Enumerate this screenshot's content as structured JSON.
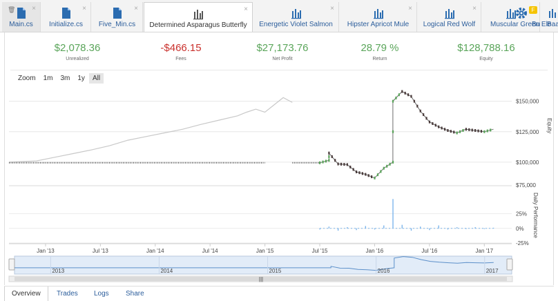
{
  "tabs": [
    {
      "label": "Main.cs",
      "icon": "file-icon",
      "active": false,
      "home": true,
      "pin": "🗑"
    },
    {
      "label": "Initialize.cs",
      "icon": "file-icon",
      "active": false
    },
    {
      "label": "Five_Min.cs",
      "icon": "file-icon",
      "active": false
    },
    {
      "label": "Determined Asparagus Butterfly",
      "icon": "chart-icon",
      "active": true
    },
    {
      "label": "Energetic Violet Salmon",
      "icon": "chart-icon",
      "active": false
    },
    {
      "label": "Hipster Apricot Mule",
      "icon": "chart-icon",
      "active": false
    },
    {
      "label": "Logical Red Wolf",
      "icon": "chart-icon",
      "active": false
    },
    {
      "label": "Muscular Green Ele",
      "icon": "chart-icon",
      "active": false
    },
    {
      "label": "Bu",
      "icon": "chart-icon",
      "active": false
    },
    {
      "label": "Baa",
      "icon": "chart-icon",
      "active": false
    }
  ],
  "tab_close_glyph": "×",
  "badge_text": "F",
  "stats": [
    {
      "value": "$2,078.36",
      "label": "Unrealized",
      "tone": "pos"
    },
    {
      "value": "-$466.15",
      "label": "Fees",
      "tone": "neg"
    },
    {
      "value": "$27,173.76",
      "label": "Net Profit",
      "tone": "pos"
    },
    {
      "value": "28.79 %",
      "label": "Return",
      "tone": "pos"
    },
    {
      "value": "$128,788.16",
      "label": "Equity",
      "tone": "pos"
    }
  ],
  "zoom": {
    "label": "Zoom",
    "options": [
      "1m",
      "3m",
      "1y",
      "All"
    ],
    "selected": "All"
  },
  "colors": {
    "positive": "#5aa55a",
    "negative": "#c9302c",
    "link": "#2b5d9b",
    "bar": "#7cb5ec",
    "benchmark": "#c8c8c8"
  },
  "chart_data": {
    "type": "line",
    "x_ticks": [
      "Jan '13",
      "Jul '13",
      "Jan '14",
      "Jul '14",
      "Jan '15",
      "Jul '15",
      "Jan '16",
      "Jul '16",
      "Jan '17"
    ],
    "x_range": [
      "2012-09",
      "2017-04"
    ],
    "equity": {
      "axis_label": "Equity",
      "ylim": [
        75000,
        160000
      ],
      "y_ticks": [
        "$150,000",
        "$125,000",
        "$100,000",
        "$75,000"
      ],
      "benchmark": [
        {
          "x": "2012-09",
          "y": 100000
        },
        {
          "x": "2012-12",
          "y": 101000
        },
        {
          "x": "2013-02",
          "y": 104000
        },
        {
          "x": "2013-04",
          "y": 107000
        },
        {
          "x": "2013-06",
          "y": 110000
        },
        {
          "x": "2013-08",
          "y": 113500
        },
        {
          "x": "2013-10",
          "y": 118000
        },
        {
          "x": "2013-12",
          "y": 121000
        },
        {
          "x": "2014-02",
          "y": 124000
        },
        {
          "x": "2014-04",
          "y": 127000
        },
        {
          "x": "2014-06",
          "y": 131000
        },
        {
          "x": "2014-08",
          "y": 134500
        },
        {
          "x": "2014-10",
          "y": 138000
        },
        {
          "x": "2014-11",
          "y": 141000
        },
        {
          "x": "2014-12",
          "y": 143500
        },
        {
          "x": "2015-01",
          "y": 141000
        },
        {
          "x": "2015-02",
          "y": 147000
        },
        {
          "x": "2015-03",
          "y": 153000
        },
        {
          "x": "2015-04",
          "y": 149000
        }
      ],
      "flat_dotted": {
        "from": "2012-09",
        "to": "2015-01",
        "y": 99500
      },
      "flat_dotted_2": {
        "from": "2015-04",
        "to": "2015-07",
        "y": 99500
      },
      "strategy": [
        {
          "x": "2015-07",
          "y": 99500
        },
        {
          "x": "2015-08",
          "y": 101500
        },
        {
          "x": "2015-08",
          "y": 107500
        },
        {
          "x": "2015-09",
          "y": 98500
        },
        {
          "x": "2015-10",
          "y": 98000
        },
        {
          "x": "2015-11",
          "y": 92000
        },
        {
          "x": "2015-12",
          "y": 90000
        },
        {
          "x": "2016-01",
          "y": 87000
        },
        {
          "x": "2016-02",
          "y": 95000
        },
        {
          "x": "2016-03",
          "y": 100000
        },
        {
          "x": "2016-03",
          "y": 150000
        },
        {
          "x": "2016-04",
          "y": 158000
        },
        {
          "x": "2016-05",
          "y": 154000
        },
        {
          "x": "2016-06",
          "y": 142000
        },
        {
          "x": "2016-07",
          "y": 133000
        },
        {
          "x": "2016-08",
          "y": 129000
        },
        {
          "x": "2016-09",
          "y": 126000
        },
        {
          "x": "2016-10",
          "y": 124000
        },
        {
          "x": "2016-11",
          "y": 127000
        },
        {
          "x": "2016-12",
          "y": 126000
        },
        {
          "x": "2017-01",
          "y": 125000
        },
        {
          "x": "2017-02",
          "y": 127000
        }
      ]
    },
    "daily_performance": {
      "axis_label": "Daily Performance",
      "ylim": [
        -25,
        75
      ],
      "y_ticks": [
        "25%",
        "0%",
        "-25%"
      ],
      "bars": [
        {
          "x": "2015-07",
          "y": -2
        },
        {
          "x": "2015-08",
          "y": 3
        },
        {
          "x": "2015-09",
          "y": -4
        },
        {
          "x": "2015-10",
          "y": 2
        },
        {
          "x": "2015-11",
          "y": -3
        },
        {
          "x": "2015-12",
          "y": 4
        },
        {
          "x": "2016-01",
          "y": -2
        },
        {
          "x": "2016-02",
          "y": 5
        },
        {
          "x": "2016-03",
          "y": 50
        },
        {
          "x": "2016-04",
          "y": 6
        },
        {
          "x": "2016-05",
          "y": -4
        },
        {
          "x": "2016-06",
          "y": 3
        },
        {
          "x": "2016-07",
          "y": -3
        },
        {
          "x": "2016-08",
          "y": 5
        },
        {
          "x": "2016-09",
          "y": -2
        },
        {
          "x": "2016-10",
          "y": 2
        },
        {
          "x": "2016-11",
          "y": -1
        },
        {
          "x": "2016-12",
          "y": 2
        },
        {
          "x": "2017-01",
          "y": -1
        },
        {
          "x": "2017-02",
          "y": 1
        }
      ]
    },
    "navigator": {
      "labels": [
        "2013",
        "2014",
        "2015",
        "2016",
        "2017"
      ],
      "scrollbar_grip": "|||"
    }
  },
  "bottom_tabs": [
    {
      "label": "Overview",
      "selected": true
    },
    {
      "label": "Trades",
      "selected": false
    },
    {
      "label": "Logs",
      "selected": false
    },
    {
      "label": "Share",
      "selected": false
    }
  ]
}
